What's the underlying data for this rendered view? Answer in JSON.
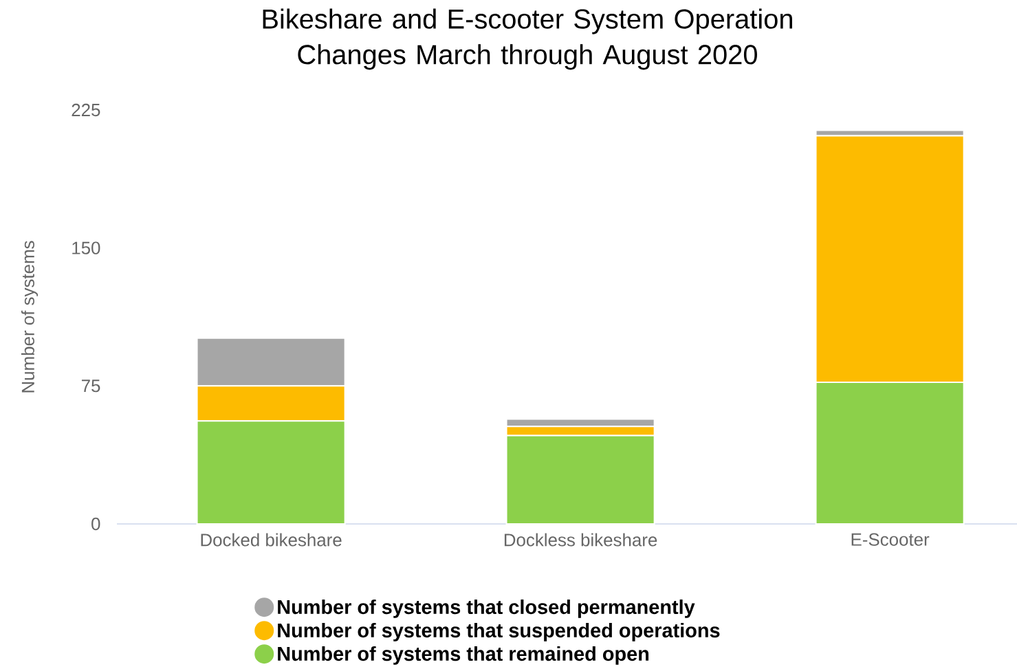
{
  "chart_data": {
    "type": "bar",
    "title": "Bikeshare and E-scooter System Operation Changes March through August 2020",
    "ylabel": "Number of systems",
    "categories": [
      "Docked bikeshare",
      "Dockless bikeshare",
      "E-Scooter"
    ],
    "stacked": true,
    "series": [
      {
        "name": "Number of systems that remained open",
        "color": "#8cd04a",
        "values": [
          56,
          48,
          77
        ]
      },
      {
        "name": "Number of systems that suspended operations",
        "color": "#fdbb00",
        "values": [
          19,
          5,
          134
        ]
      },
      {
        "name": "Number of systems that closed permanently",
        "color": "#a6a6a6",
        "values": [
          26,
          4,
          3
        ]
      }
    ],
    "ylim": [
      0,
      225
    ],
    "yticks": [
      0,
      75,
      150,
      225
    ],
    "legend": "bottom"
  }
}
